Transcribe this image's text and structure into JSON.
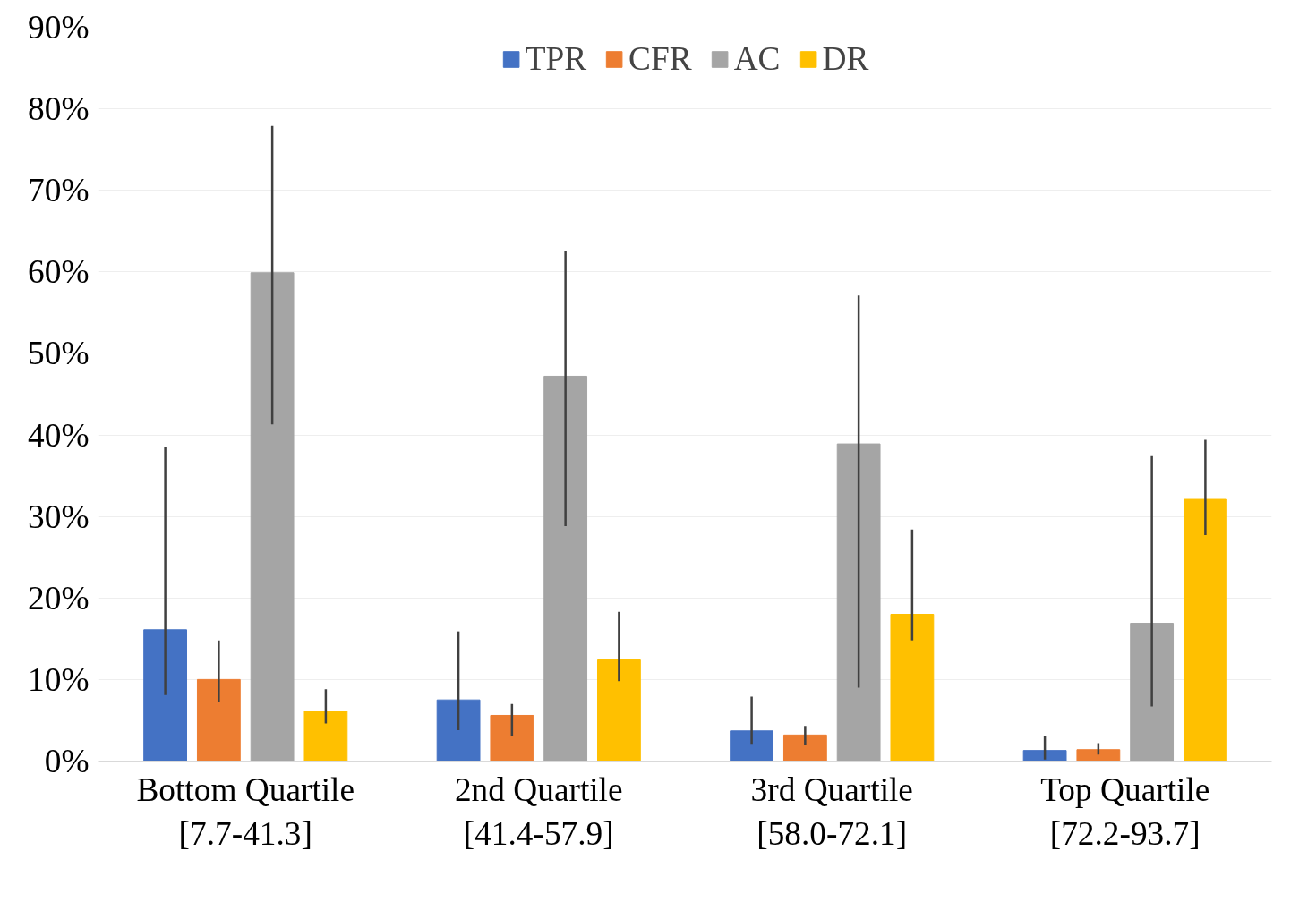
{
  "chart_data": {
    "type": "bar",
    "categories": [
      "Bottom Quartile\n[7.7-41.3]",
      "2nd Quartile\n[41.4-57.9]",
      "3rd Quartile\n[58.0-72.1]",
      "Top Quartile\n[72.2-93.7]"
    ],
    "series": [
      {
        "name": "TPR",
        "color": "#4472c4",
        "values": [
          16.1,
          7.5,
          3.7,
          1.3
        ],
        "errors": [
          [
            8.1,
            38.5
          ],
          [
            3.8,
            15.9
          ],
          [
            2.1,
            7.9
          ],
          [
            0.2,
            3.1
          ]
        ]
      },
      {
        "name": "CFR",
        "color": "#ed7d31",
        "values": [
          10.0,
          5.6,
          3.2,
          1.4
        ],
        "errors": [
          [
            7.2,
            14.8
          ],
          [
            3.1,
            7.0
          ],
          [
            2.0,
            4.3
          ],
          [
            0.8,
            2.2
          ]
        ]
      },
      {
        "name": "AC",
        "color": "#a5a5a5",
        "values": [
          59.9,
          47.2,
          38.9,
          16.9
        ],
        "errors": [
          [
            41.3,
            77.9
          ],
          [
            28.8,
            62.6
          ],
          [
            9.0,
            57.1
          ],
          [
            6.7,
            37.4
          ]
        ]
      },
      {
        "name": "DR",
        "color": "#ffc000",
        "values": [
          6.1,
          12.4,
          18.0,
          32.1
        ],
        "errors": [
          [
            4.6,
            8.8
          ],
          [
            9.8,
            18.3
          ],
          [
            14.8,
            28.4
          ],
          [
            27.7,
            39.4
          ]
        ]
      }
    ],
    "ylim": [
      0,
      90
    ],
    "yticks": [
      {
        "value": 0,
        "label": "0%"
      },
      {
        "value": 10,
        "label": "10%"
      },
      {
        "value": 20,
        "label": "20%"
      },
      {
        "value": 30,
        "label": "30%"
      },
      {
        "value": 40,
        "label": "40%"
      },
      {
        "value": 50,
        "label": "50%"
      },
      {
        "value": 60,
        "label": "60%"
      },
      {
        "value": 70,
        "label": "70%"
      },
      {
        "value": 80,
        "label": "80%"
      },
      {
        "value": 90,
        "label": "90%"
      }
    ],
    "grid": "y",
    "legend": "top"
  }
}
